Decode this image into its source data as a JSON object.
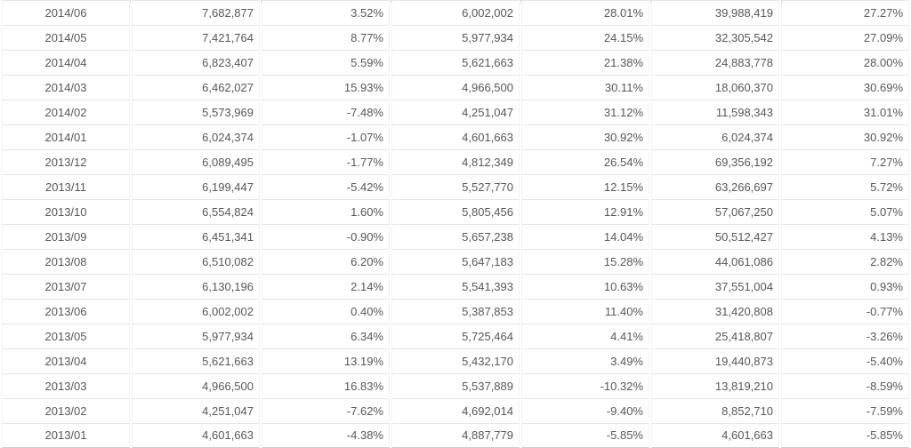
{
  "chart_data": {
    "type": "table",
    "title": "",
    "columns_visible_headers": [],
    "rows": [
      [
        "2014/06",
        "7,682,877",
        "3.52%",
        "6,002,002",
        "28.01%",
        "39,988,419",
        "27.27%"
      ],
      [
        "2014/05",
        "7,421,764",
        "8.77%",
        "5,977,934",
        "24.15%",
        "32,305,542",
        "27.09%"
      ],
      [
        "2014/04",
        "6,823,407",
        "5.59%",
        "5,621,663",
        "21.38%",
        "24,883,778",
        "28.00%"
      ],
      [
        "2014/03",
        "6,462,027",
        "15.93%",
        "4,966,500",
        "30.11%",
        "18,060,370",
        "30.69%"
      ],
      [
        "2014/02",
        "5,573,969",
        "-7.48%",
        "4,251,047",
        "31.12%",
        "11,598,343",
        "31.01%"
      ],
      [
        "2014/01",
        "6,024,374",
        "-1.07%",
        "4,601,663",
        "30.92%",
        "6,024,374",
        "30.92%"
      ],
      [
        "2013/12",
        "6,089,495",
        "-1.77%",
        "4,812,349",
        "26.54%",
        "69,356,192",
        "7.27%"
      ],
      [
        "2013/11",
        "6,199,447",
        "-5.42%",
        "5,527,770",
        "12.15%",
        "63,266,697",
        "5.72%"
      ],
      [
        "2013/10",
        "6,554,824",
        "1.60%",
        "5,805,456",
        "12.91%",
        "57,067,250",
        "5.07%"
      ],
      [
        "2013/09",
        "6,451,341",
        "-0.90%",
        "5,657,238",
        "14.04%",
        "50,512,427",
        "4.13%"
      ],
      [
        "2013/08",
        "6,510,082",
        "6.20%",
        "5,647,183",
        "15.28%",
        "44,061,086",
        "2.82%"
      ],
      [
        "2013/07",
        "6,130,196",
        "2.14%",
        "5,541,393",
        "10.63%",
        "37,551,004",
        "0.93%"
      ],
      [
        "2013/06",
        "6,002,002",
        "0.40%",
        "5,387,853",
        "11.40%",
        "31,420,808",
        "-0.77%"
      ],
      [
        "2013/05",
        "5,977,934",
        "6.34%",
        "5,725,464",
        "4.41%",
        "25,418,807",
        "-3.26%"
      ],
      [
        "2013/04",
        "5,621,663",
        "13.19%",
        "5,432,170",
        "3.49%",
        "19,440,873",
        "-5.40%"
      ],
      [
        "2013/03",
        "4,966,500",
        "16.83%",
        "5,537,889",
        "-10.32%",
        "13,819,210",
        "-8.59%"
      ],
      [
        "2013/02",
        "4,251,047",
        "-7.62%",
        "4,692,014",
        "-9.40%",
        "8,852,710",
        "-7.59%"
      ],
      [
        "2013/01",
        "4,601,663",
        "-4.38%",
        "4,887,779",
        "-5.85%",
        "4,601,663",
        "-5.85%"
      ]
    ]
  },
  "styles": {
    "text_color": "#55575b",
    "negative_color": "#f8696b",
    "row_border_color": "#e6e6e6",
    "column_border_color": "#f3f3f3",
    "bottom_border_color": "#cccccc",
    "tick_color": "#d2d2d2",
    "row_bg": "#ffffff"
  }
}
